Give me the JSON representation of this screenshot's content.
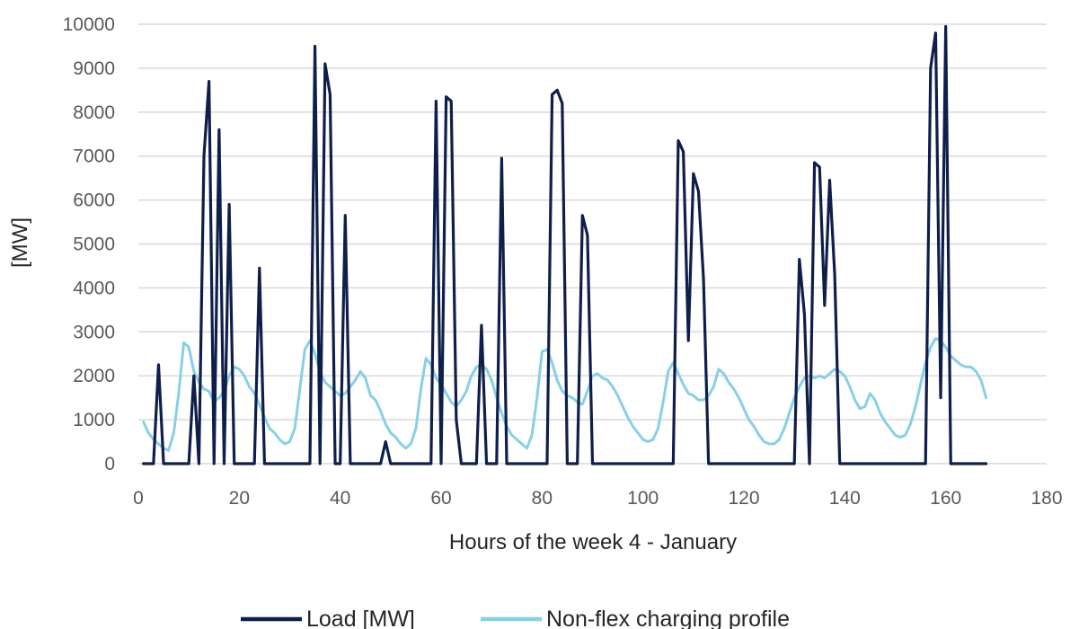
{
  "chart_data": {
    "type": "line",
    "title": "",
    "xlabel": "Hours of the week 4 - January",
    "ylabel": "[MW]",
    "xlim": [
      0,
      180
    ],
    "ylim": [
      0,
      10000
    ],
    "x_ticks": [
      0,
      20,
      40,
      60,
      80,
      100,
      120,
      140,
      160,
      180
    ],
    "y_ticks": [
      0,
      1000,
      2000,
      3000,
      4000,
      5000,
      6000,
      7000,
      8000,
      9000,
      10000
    ],
    "grid": "horizontal",
    "legend_position": "bottom",
    "series": [
      {
        "name": "Load [MW]",
        "color": "#0f1f4b",
        "points": [
          [
            1,
            0
          ],
          [
            2,
            0
          ],
          [
            3,
            0
          ],
          [
            4,
            2250
          ],
          [
            5,
            0
          ],
          [
            6,
            0
          ],
          [
            7,
            0
          ],
          [
            8,
            0
          ],
          [
            9,
            0
          ],
          [
            10,
            0
          ],
          [
            11,
            2000
          ],
          [
            12,
            0
          ],
          [
            13,
            7000
          ],
          [
            14,
            8700
          ],
          [
            15,
            0
          ],
          [
            16,
            7600
          ],
          [
            17,
            0
          ],
          [
            18,
            5900
          ],
          [
            19,
            0
          ],
          [
            20,
            0
          ],
          [
            21,
            0
          ],
          [
            22,
            0
          ],
          [
            23,
            0
          ],
          [
            24,
            4450
          ],
          [
            25,
            0
          ],
          [
            26,
            0
          ],
          [
            27,
            0
          ],
          [
            28,
            0
          ],
          [
            29,
            0
          ],
          [
            30,
            0
          ],
          [
            31,
            0
          ],
          [
            32,
            0
          ],
          [
            33,
            0
          ],
          [
            34,
            0
          ],
          [
            35,
            9500
          ],
          [
            36,
            0
          ],
          [
            37,
            9100
          ],
          [
            38,
            8400
          ],
          [
            39,
            0
          ],
          [
            40,
            0
          ],
          [
            41,
            5650
          ],
          [
            42,
            0
          ],
          [
            43,
            0
          ],
          [
            44,
            0
          ],
          [
            45,
            0
          ],
          [
            46,
            0
          ],
          [
            47,
            0
          ],
          [
            48,
            0
          ],
          [
            49,
            500
          ],
          [
            50,
            0
          ],
          [
            51,
            0
          ],
          [
            52,
            0
          ],
          [
            53,
            0
          ],
          [
            54,
            0
          ],
          [
            55,
            0
          ],
          [
            56,
            0
          ],
          [
            57,
            0
          ],
          [
            58,
            0
          ],
          [
            59,
            8250
          ],
          [
            60,
            0
          ],
          [
            61,
            8350
          ],
          [
            62,
            8250
          ],
          [
            63,
            1000
          ],
          [
            64,
            0
          ],
          [
            65,
            0
          ],
          [
            66,
            0
          ],
          [
            67,
            0
          ],
          [
            68,
            3150
          ],
          [
            69,
            0
          ],
          [
            70,
            0
          ],
          [
            71,
            0
          ],
          [
            72,
            6950
          ],
          [
            73,
            0
          ],
          [
            74,
            0
          ],
          [
            75,
            0
          ],
          [
            76,
            0
          ],
          [
            77,
            0
          ],
          [
            78,
            0
          ],
          [
            79,
            0
          ],
          [
            80,
            0
          ],
          [
            81,
            0
          ],
          [
            82,
            8400
          ],
          [
            83,
            8500
          ],
          [
            84,
            8200
          ],
          [
            85,
            0
          ],
          [
            86,
            0
          ],
          [
            87,
            0
          ],
          [
            88,
            5650
          ],
          [
            89,
            5200
          ],
          [
            90,
            0
          ],
          [
            91,
            0
          ],
          [
            92,
            0
          ],
          [
            93,
            0
          ],
          [
            94,
            0
          ],
          [
            95,
            0
          ],
          [
            96,
            0
          ],
          [
            97,
            0
          ],
          [
            98,
            0
          ],
          [
            99,
            0
          ],
          [
            100,
            0
          ],
          [
            101,
            0
          ],
          [
            102,
            0
          ],
          [
            103,
            0
          ],
          [
            104,
            0
          ],
          [
            105,
            0
          ],
          [
            106,
            0
          ],
          [
            107,
            7350
          ],
          [
            108,
            7100
          ],
          [
            109,
            2800
          ],
          [
            110,
            6600
          ],
          [
            111,
            6200
          ],
          [
            112,
            4200
          ],
          [
            113,
            0
          ],
          [
            114,
            0
          ],
          [
            115,
            0
          ],
          [
            116,
            0
          ],
          [
            117,
            0
          ],
          [
            118,
            0
          ],
          [
            119,
            0
          ],
          [
            120,
            0
          ],
          [
            121,
            0
          ],
          [
            122,
            0
          ],
          [
            123,
            0
          ],
          [
            124,
            0
          ],
          [
            125,
            0
          ],
          [
            126,
            0
          ],
          [
            127,
            0
          ],
          [
            128,
            0
          ],
          [
            129,
            0
          ],
          [
            130,
            0
          ],
          [
            131,
            4650
          ],
          [
            132,
            3400
          ],
          [
            133,
            0
          ],
          [
            134,
            6850
          ],
          [
            135,
            6750
          ],
          [
            136,
            3600
          ],
          [
            137,
            6450
          ],
          [
            138,
            4300
          ],
          [
            139,
            0
          ],
          [
            140,
            0
          ],
          [
            141,
            0
          ],
          [
            142,
            0
          ],
          [
            143,
            0
          ],
          [
            144,
            0
          ],
          [
            145,
            0
          ],
          [
            146,
            0
          ],
          [
            147,
            0
          ],
          [
            148,
            0
          ],
          [
            149,
            0
          ],
          [
            150,
            0
          ],
          [
            151,
            0
          ],
          [
            152,
            0
          ],
          [
            153,
            0
          ],
          [
            154,
            0
          ],
          [
            155,
            0
          ],
          [
            156,
            0
          ],
          [
            157,
            9000
          ],
          [
            158,
            9800
          ],
          [
            159,
            1500
          ],
          [
            160,
            9950
          ],
          [
            161,
            0
          ],
          [
            162,
            0
          ],
          [
            163,
            0
          ],
          [
            164,
            0
          ],
          [
            165,
            0
          ],
          [
            166,
            0
          ],
          [
            167,
            0
          ],
          [
            168,
            0
          ]
        ]
      },
      {
        "name": "Non-flex charging profile",
        "color": "#88cfe8",
        "points": [
          [
            1,
            950
          ],
          [
            2,
            700
          ],
          [
            3,
            550
          ],
          [
            4,
            450
          ],
          [
            5,
            350
          ],
          [
            6,
            300
          ],
          [
            7,
            700
          ],
          [
            8,
            1600
          ],
          [
            9,
            2750
          ],
          [
            10,
            2650
          ],
          [
            11,
            2100
          ],
          [
            12,
            1850
          ],
          [
            13,
            1700
          ],
          [
            14,
            1650
          ],
          [
            15,
            1400
          ],
          [
            16,
            1500
          ],
          [
            17,
            1650
          ],
          [
            18,
            2000
          ],
          [
            19,
            2200
          ],
          [
            20,
            2150
          ],
          [
            21,
            2000
          ],
          [
            22,
            1750
          ],
          [
            23,
            1600
          ],
          [
            24,
            1350
          ],
          [
            25,
            1050
          ],
          [
            26,
            800
          ],
          [
            27,
            700
          ],
          [
            28,
            550
          ],
          [
            29,
            450
          ],
          [
            30,
            500
          ],
          [
            31,
            800
          ],
          [
            32,
            1700
          ],
          [
            33,
            2600
          ],
          [
            34,
            2800
          ],
          [
            35,
            2500
          ],
          [
            36,
            2100
          ],
          [
            37,
            1850
          ],
          [
            38,
            1750
          ],
          [
            39,
            1650
          ],
          [
            40,
            1550
          ],
          [
            41,
            1600
          ],
          [
            42,
            1750
          ],
          [
            43,
            1900
          ],
          [
            44,
            2100
          ],
          [
            45,
            1950
          ],
          [
            46,
            1550
          ],
          [
            47,
            1450
          ],
          [
            48,
            1200
          ],
          [
            49,
            900
          ],
          [
            50,
            700
          ],
          [
            51,
            600
          ],
          [
            52,
            450
          ],
          [
            53,
            350
          ],
          [
            54,
            450
          ],
          [
            55,
            800
          ],
          [
            56,
            1700
          ],
          [
            57,
            2400
          ],
          [
            58,
            2250
          ],
          [
            59,
            1950
          ],
          [
            60,
            1800
          ],
          [
            61,
            1600
          ],
          [
            62,
            1400
          ],
          [
            63,
            1300
          ],
          [
            64,
            1450
          ],
          [
            65,
            1650
          ],
          [
            66,
            2000
          ],
          [
            67,
            2200
          ],
          [
            68,
            2250
          ],
          [
            69,
            2150
          ],
          [
            70,
            1900
          ],
          [
            71,
            1500
          ],
          [
            72,
            1150
          ],
          [
            73,
            850
          ],
          [
            74,
            650
          ],
          [
            75,
            550
          ],
          [
            76,
            450
          ],
          [
            77,
            350
          ],
          [
            78,
            650
          ],
          [
            79,
            1500
          ],
          [
            80,
            2550
          ],
          [
            81,
            2600
          ],
          [
            82,
            2300
          ],
          [
            83,
            1900
          ],
          [
            84,
            1650
          ],
          [
            85,
            1550
          ],
          [
            86,
            1500
          ],
          [
            87,
            1400
          ],
          [
            88,
            1350
          ],
          [
            89,
            1650
          ],
          [
            90,
            2000
          ],
          [
            91,
            2050
          ],
          [
            92,
            1950
          ],
          [
            93,
            1900
          ],
          [
            94,
            1750
          ],
          [
            95,
            1550
          ],
          [
            96,
            1300
          ],
          [
            97,
            1050
          ],
          [
            98,
            850
          ],
          [
            99,
            700
          ],
          [
            100,
            550
          ],
          [
            101,
            500
          ],
          [
            102,
            550
          ],
          [
            103,
            800
          ],
          [
            104,
            1400
          ],
          [
            105,
            2100
          ],
          [
            106,
            2300
          ],
          [
            107,
            2050
          ],
          [
            108,
            1800
          ],
          [
            109,
            1600
          ],
          [
            110,
            1550
          ],
          [
            111,
            1450
          ],
          [
            112,
            1450
          ],
          [
            113,
            1550
          ],
          [
            114,
            1750
          ],
          [
            115,
            2150
          ],
          [
            116,
            2050
          ],
          [
            117,
            1850
          ],
          [
            118,
            1700
          ],
          [
            119,
            1500
          ],
          [
            120,
            1250
          ],
          [
            121,
            1000
          ],
          [
            122,
            850
          ],
          [
            123,
            650
          ],
          [
            124,
            500
          ],
          [
            125,
            450
          ],
          [
            126,
            450
          ],
          [
            127,
            550
          ],
          [
            128,
            800
          ],
          [
            129,
            1150
          ],
          [
            130,
            1500
          ],
          [
            131,
            1750
          ],
          [
            132,
            1950
          ],
          [
            133,
            2000
          ],
          [
            134,
            1950
          ],
          [
            135,
            2000
          ],
          [
            136,
            1950
          ],
          [
            137,
            2050
          ],
          [
            138,
            2150
          ],
          [
            139,
            2100
          ],
          [
            140,
            2000
          ],
          [
            141,
            1750
          ],
          [
            142,
            1450
          ],
          [
            143,
            1250
          ],
          [
            144,
            1300
          ],
          [
            145,
            1600
          ],
          [
            146,
            1450
          ],
          [
            147,
            1150
          ],
          [
            148,
            950
          ],
          [
            149,
            800
          ],
          [
            150,
            650
          ],
          [
            151,
            600
          ],
          [
            152,
            650
          ],
          [
            153,
            900
          ],
          [
            154,
            1300
          ],
          [
            155,
            1800
          ],
          [
            156,
            2300
          ],
          [
            157,
            2650
          ],
          [
            158,
            2850
          ],
          [
            159,
            2800
          ],
          [
            160,
            2650
          ],
          [
            161,
            2450
          ],
          [
            162,
            2350
          ],
          [
            163,
            2250
          ],
          [
            164,
            2200
          ],
          [
            165,
            2200
          ],
          [
            166,
            2100
          ],
          [
            167,
            1900
          ],
          [
            168,
            1500
          ]
        ]
      }
    ]
  }
}
